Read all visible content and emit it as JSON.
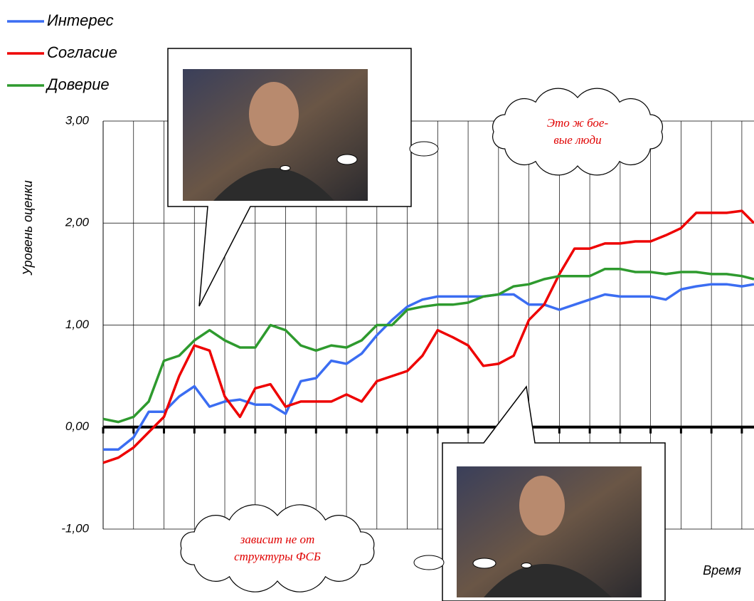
{
  "chart_data": {
    "type": "line",
    "y_label": "Уровень оценки",
    "x_label": "Время",
    "x": [
      0,
      0.5,
      1,
      1.5,
      2,
      2.5,
      3,
      3.5,
      4,
      4.5,
      5,
      5.5,
      6,
      6.5,
      7,
      7.5,
      8,
      8.5,
      9,
      9.5,
      10,
      10.5,
      11,
      11.5,
      12,
      12.5,
      13,
      13.5,
      14,
      14.5,
      15,
      15.5,
      16,
      16.5,
      17,
      17.5,
      18,
      18.5,
      19,
      19.5,
      20,
      20.5,
      21,
      21.4
    ],
    "xlim": [
      0,
      21.4
    ],
    "xticks": [
      0,
      1,
      2,
      3,
      4,
      5,
      6,
      7,
      8,
      9,
      10,
      11,
      12,
      13,
      14,
      15,
      16,
      17,
      18,
      19,
      20,
      21
    ],
    "ylim": [
      -1,
      3
    ],
    "yticks": [
      {
        "value": -1,
        "label": "-1,00"
      },
      {
        "value": 0,
        "label": "0,00"
      },
      {
        "value": 1,
        "label": "1,00"
      },
      {
        "value": 2,
        "label": "2,00"
      },
      {
        "value": 3,
        "label": "3,00"
      }
    ],
    "grid": true,
    "series": [
      {
        "name": "Интерес",
        "color": "#3b6df2",
        "values": [
          -0.22,
          -0.22,
          -0.1,
          0.15,
          0.15,
          0.3,
          0.4,
          0.2,
          0.25,
          0.27,
          0.22,
          0.22,
          0.13,
          0.45,
          0.48,
          0.65,
          0.62,
          0.72,
          0.9,
          1.05,
          1.18,
          1.25,
          1.28,
          1.28,
          1.28,
          1.28,
          1.3,
          1.3,
          1.2,
          1.2,
          1.15,
          1.2,
          1.25,
          1.3,
          1.28,
          1.28,
          1.28,
          1.25,
          1.35,
          1.38,
          1.4,
          1.4,
          1.38,
          1.4
        ]
      },
      {
        "name": "Согласие",
        "color": "#ee0000",
        "values": [
          -0.35,
          -0.3,
          -0.2,
          -0.05,
          0.1,
          0.5,
          0.8,
          0.75,
          0.3,
          0.1,
          0.38,
          0.42,
          0.2,
          0.25,
          0.25,
          0.25,
          0.32,
          0.25,
          0.45,
          0.5,
          0.55,
          0.7,
          0.95,
          0.88,
          0.8,
          0.6,
          0.62,
          0.7,
          1.05,
          1.2,
          1.5,
          1.75,
          1.75,
          1.8,
          1.8,
          1.82,
          1.82,
          1.88,
          1.95,
          2.1,
          2.1,
          2.1,
          2.12,
          2.0
        ]
      },
      {
        "name": "Доверие",
        "color": "#2e9a2e",
        "values": [
          0.08,
          0.05,
          0.1,
          0.25,
          0.65,
          0.7,
          0.85,
          0.95,
          0.85,
          0.78,
          0.78,
          1.0,
          0.95,
          0.8,
          0.75,
          0.8,
          0.78,
          0.85,
          1.0,
          1.0,
          1.15,
          1.18,
          1.2,
          1.2,
          1.22,
          1.28,
          1.3,
          1.38,
          1.4,
          1.45,
          1.48,
          1.48,
          1.48,
          1.55,
          1.55,
          1.52,
          1.52,
          1.5,
          1.52,
          1.52,
          1.5,
          1.5,
          1.48,
          1.45
        ]
      }
    ],
    "annotations": [
      {
        "lines": [
          "Это ж бое-",
          "вые люди"
        ]
      },
      {
        "lines": [
          "зависит не от",
          "структуры ФСБ"
        ]
      }
    ]
  }
}
